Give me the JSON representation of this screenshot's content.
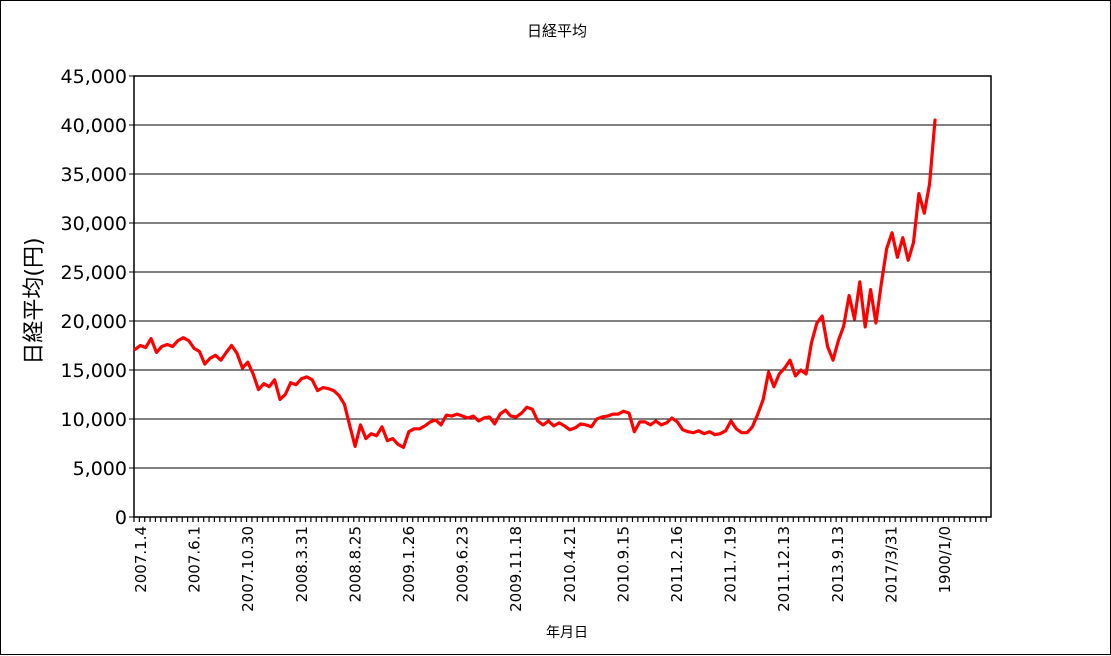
{
  "chart_data": {
    "type": "line",
    "title": "日経平均",
    "xlabel": "年月日",
    "ylabel": "日経平均(円)",
    "ylim": [
      0,
      45000
    ],
    "yticks": [
      0,
      5000,
      10000,
      15000,
      20000,
      25000,
      30000,
      35000,
      40000,
      45000
    ],
    "ytick_labels": [
      "0",
      "5,000",
      "10,000",
      "15,000",
      "20,000",
      "25,000",
      "30,000",
      "35,000",
      "40,000",
      "45,000"
    ],
    "xtick_labels": [
      "2007.1.4",
      "2007.6.1",
      "2007.10.30",
      "2008.3.31",
      "2008.8.25",
      "2009.1.26",
      "2009.6.23",
      "2009.11.18",
      "2010.4.21",
      "2010.9.15",
      "2011.2.16",
      "2011.7.19",
      "2011.12.13",
      "2013.9.13",
      "2017/3/31",
      "1900/1/0"
    ],
    "grid": "horizontal",
    "legend": "none",
    "series": [
      {
        "color": "#ff0000",
        "values": [
          17100,
          17500,
          17300,
          18200,
          16800,
          17400,
          17600,
          17400,
          18000,
          18300,
          18000,
          17200,
          16900,
          15600,
          16200,
          16500,
          16000,
          16800,
          17500,
          16700,
          15200,
          15800,
          14600,
          13000,
          13600,
          13300,
          14000,
          12000,
          12500,
          13700,
          13500,
          14100,
          14300,
          14000,
          12900,
          13200,
          13100,
          12900,
          12400,
          11500,
          9300,
          7200,
          9400,
          8000,
          8500,
          8300,
          9200,
          7800,
          8000,
          7400,
          7100,
          8700,
          9000,
          9000,
          9300,
          9700,
          9900,
          9400,
          10400,
          10300,
          10500,
          10300,
          10100,
          10300,
          9800,
          10100,
          10200,
          9500,
          10500,
          10900,
          10300,
          10200,
          10600,
          11200,
          11000,
          9800,
          9400,
          9800,
          9300,
          9600,
          9300,
          8900,
          9100,
          9500,
          9400,
          9200,
          10000,
          10200,
          10300,
          10500,
          10500,
          10800,
          10600,
          8700,
          9700,
          9700,
          9400,
          9800,
          9400,
          9600,
          10100,
          9700,
          8900,
          8700,
          8600,
          8800,
          8500,
          8700,
          8400,
          8500,
          8800,
          9800,
          9000,
          8600,
          8600,
          9200,
          10500,
          12000,
          14800,
          13300,
          14600,
          15200,
          16000,
          14400,
          15000,
          14600,
          17800,
          19800,
          20500,
          17400,
          16000,
          18000,
          19500,
          22600,
          20200,
          24000,
          19400,
          23200,
          19800,
          23800,
          27400,
          29000,
          26500,
          28500,
          26200,
          28000,
          33000,
          31000,
          34000,
          40500
        ]
      }
    ]
  }
}
